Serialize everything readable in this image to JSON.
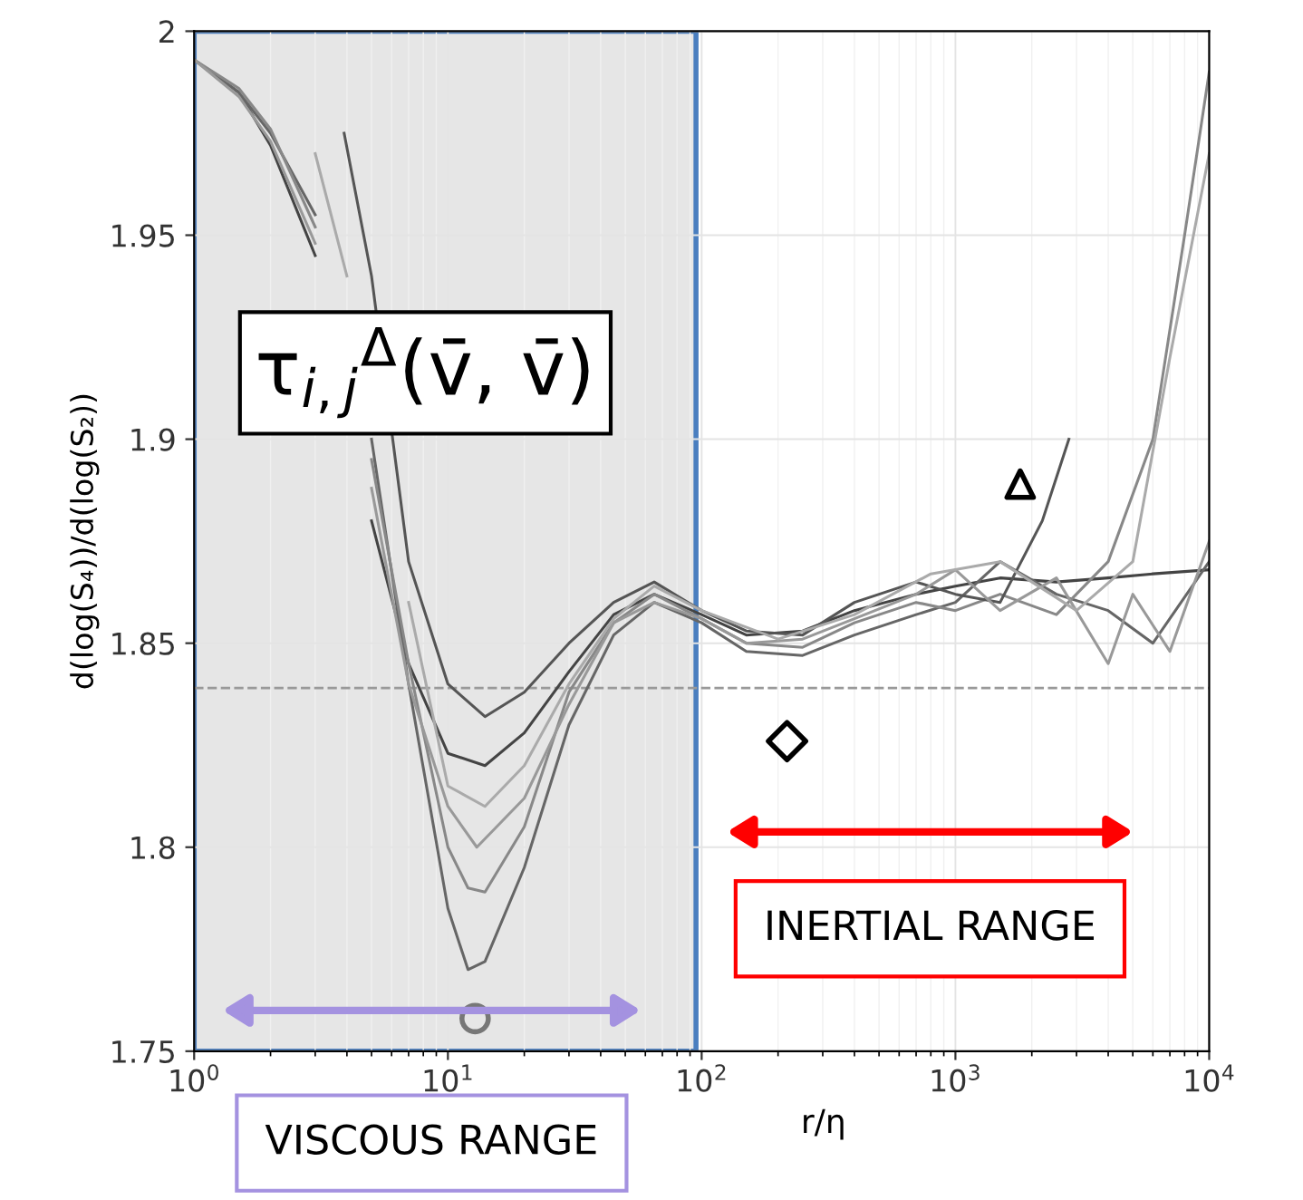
{
  "chart_data": {
    "type": "line",
    "xlabel": "r/η",
    "ylabel": "d(log(S₄))/d(log(S₂))",
    "log": "x",
    "xlim": [
      1,
      10000
    ],
    "xticks": [
      {
        "value": 1,
        "label": "10$^{0}$"
      },
      {
        "value": 10,
        "label": "10$^{1}$"
      },
      {
        "value": 100,
        "label": "10$^{2}$"
      },
      {
        "value": 1000,
        "label": "10$^{3}$"
      },
      {
        "value": 10000,
        "label": "10$^{4}$"
      }
    ],
    "ylim": [
      1.75,
      2
    ],
    "yticks": [
      1.75,
      1.8,
      1.85,
      1.9,
      1.95,
      2
    ],
    "grid": true,
    "line_style": "solid",
    "series": [
      {
        "color": "#444444",
        "x": [
          1,
          1.5,
          2,
          3,
          4,
          5,
          7,
          10,
          14,
          20,
          30,
          45,
          65,
          100,
          150,
          250,
          400,
          700,
          1000,
          1500,
          2500,
          4000,
          6000,
          10000
        ],
        "values": [
          1.993,
          1.985,
          1.972,
          1.945,
          null,
          1.88,
          1.845,
          1.823,
          1.82,
          1.828,
          1.843,
          1.857,
          1.862,
          1.857,
          1.852,
          1.853,
          1.858,
          1.862,
          1.864,
          1.866,
          1.865,
          1.866,
          1.867,
          1.868
        ]
      },
      {
        "color": "#666666",
        "x": [
          1,
          1.5,
          2,
          3,
          4,
          5,
          7,
          10,
          12,
          14,
          20,
          30,
          45,
          65,
          100,
          150,
          250,
          400,
          700,
          1000,
          1500,
          2500,
          4000,
          6000,
          10000
        ],
        "values": [
          1.993,
          1.985,
          1.975,
          1.955,
          null,
          1.9,
          1.84,
          1.785,
          1.77,
          1.772,
          1.795,
          1.83,
          1.852,
          1.86,
          1.855,
          1.848,
          1.847,
          1.852,
          1.857,
          1.86,
          1.87,
          1.862,
          1.858,
          1.85,
          1.87
        ]
      },
      {
        "color": "#888888",
        "x": [
          1,
          1.5,
          2,
          3,
          4,
          5,
          7,
          10,
          12,
          14,
          20,
          30,
          45,
          65,
          100,
          150,
          250,
          400,
          700,
          1000,
          1500,
          2500,
          4000,
          6000,
          8000,
          10000
        ],
        "values": [
          1.993,
          1.986,
          1.976,
          1.952,
          null,
          1.895,
          1.845,
          1.8,
          1.79,
          1.789,
          1.805,
          1.838,
          1.855,
          1.862,
          1.856,
          1.85,
          1.849,
          1.855,
          1.86,
          1.858,
          1.862,
          1.857,
          1.87,
          1.9,
          1.95,
          1.99
        ]
      },
      {
        "color": "#555555",
        "x": [
          3.9,
          5,
          7,
          10,
          14,
          20,
          30,
          45,
          65,
          100,
          150,
          250,
          400,
          700,
          1000,
          1500,
          2200,
          2800
        ],
        "values": [
          1.975,
          1.94,
          1.87,
          1.84,
          1.832,
          1.838,
          1.85,
          1.86,
          1.865,
          1.858,
          1.853,
          1.852,
          1.86,
          1.865,
          1.862,
          1.86,
          1.88,
          1.9
        ]
      },
      {
        "color": "#999999",
        "x": [
          1,
          1.5,
          2,
          3,
          4,
          5,
          7,
          10,
          13,
          20,
          30,
          45,
          65,
          100,
          150,
          250,
          400,
          700,
          1000,
          1500,
          2500,
          4000,
          5000,
          7000,
          10000
        ],
        "values": [
          1.993,
          1.984,
          1.973,
          1.948,
          null,
          1.888,
          1.84,
          1.81,
          1.8,
          1.812,
          1.835,
          1.855,
          1.86,
          1.856,
          1.85,
          1.851,
          1.856,
          1.862,
          1.868,
          1.858,
          1.866,
          1.845,
          1.862,
          1.848,
          1.875
        ]
      },
      {
        "color": "#aaaaaa",
        "x": [
          3,
          4,
          5,
          7,
          10,
          14,
          20,
          30,
          45,
          65,
          100,
          200,
          400,
          800,
          1500,
          3000,
          5000,
          7000,
          10000
        ],
        "values": [
          1.97,
          1.94,
          null,
          1.86,
          1.815,
          1.81,
          1.82,
          1.84,
          1.856,
          1.864,
          1.858,
          1.851,
          1.857,
          1.867,
          1.87,
          1.858,
          1.87,
          1.92,
          1.97
        ]
      },
      {
        "type": "scatter",
        "marker": "circle",
        "color": "#777777",
        "x": [
          12.8
        ],
        "values": [
          1.758
        ]
      },
      {
        "type": "scatter",
        "marker": "diamond",
        "color": "#000000",
        "x": [
          217
        ],
        "values": [
          1.826
        ]
      },
      {
        "type": "scatter",
        "marker": "triangle",
        "color": "#000000",
        "x": [
          1800
        ],
        "values": [
          1.889
        ]
      }
    ],
    "ref_lines": [
      {
        "axis": "y",
        "value": 1.839,
        "color": "#999999",
        "line_style": "dashed"
      }
    ],
    "bands": [
      {
        "axis": "x",
        "from": 1,
        "to": 95,
        "color": "#e6e6e6"
      }
    ],
    "annotations": [
      "τ$_{i,j}$$^{Δ}$(v̄, v̄)",
      "VISCOUS RANGE",
      "INERTIAL RANGE"
    ]
  }
}
